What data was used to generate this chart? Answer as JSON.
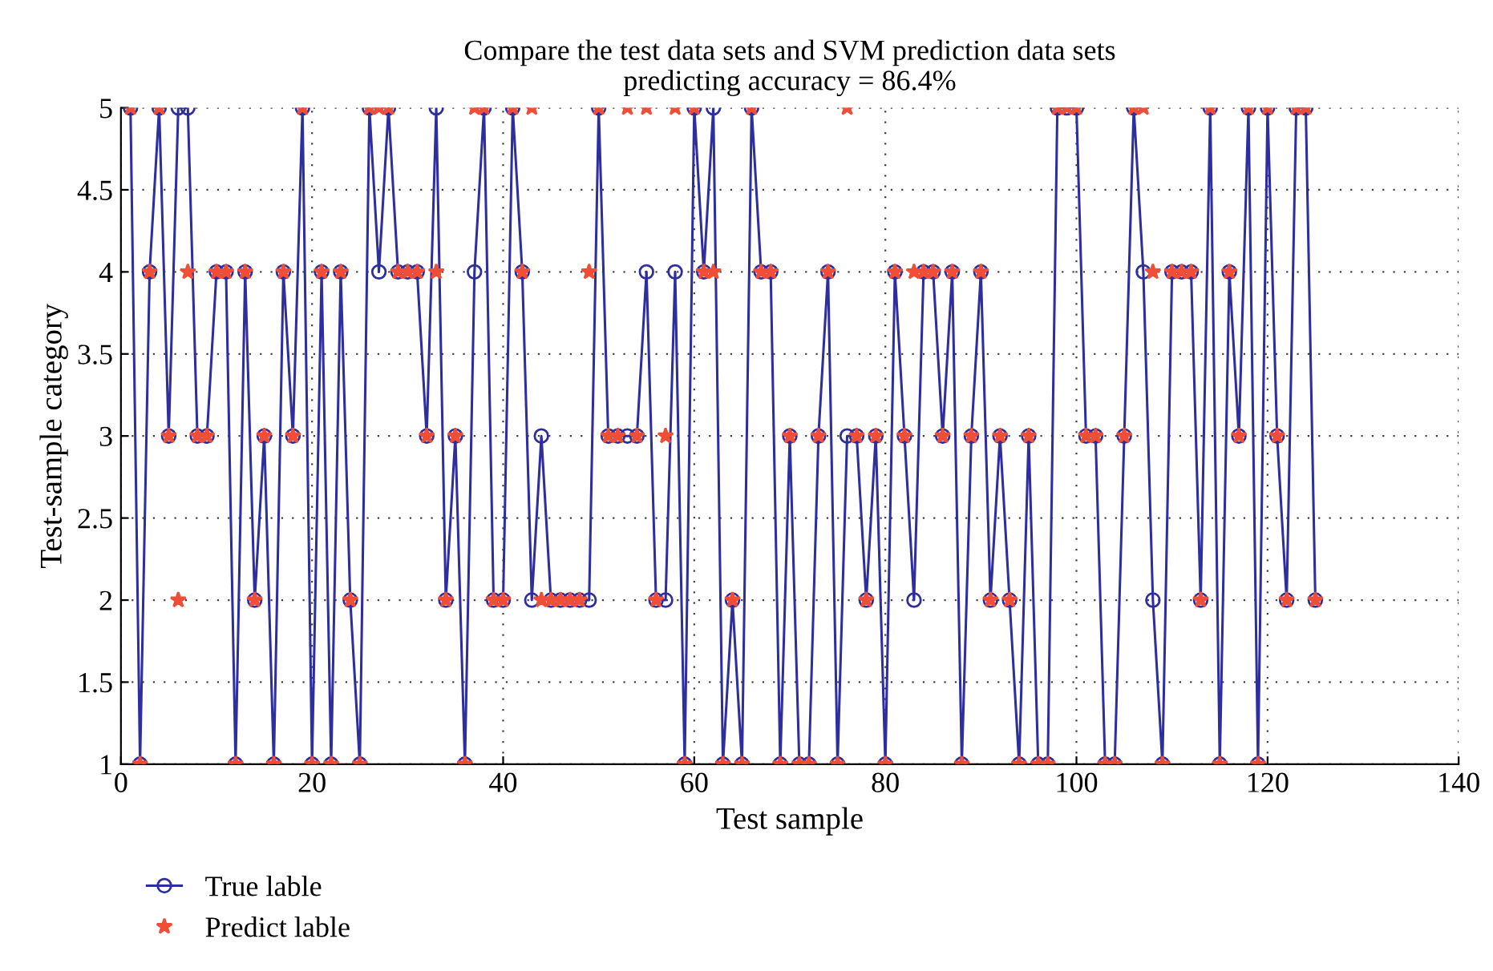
{
  "chart_data": {
    "type": "line",
    "title": "Compare the test data sets and SVM prediction data sets\npredicting accuracy = 86.4%",
    "xlabel": "Test sample",
    "ylabel": "Test-sample category",
    "x": [
      1,
      2,
      3,
      4,
      5,
      6,
      7,
      8,
      9,
      10,
      11,
      12,
      13,
      14,
      15,
      16,
      17,
      18,
      19,
      20,
      21,
      22,
      23,
      24,
      25,
      26,
      27,
      28,
      29,
      30,
      31,
      32,
      33,
      34,
      35,
      36,
      37,
      38,
      39,
      40,
      41,
      42,
      43,
      44,
      45,
      46,
      47,
      48,
      49,
      50,
      51,
      52,
      53,
      54,
      55,
      56,
      57,
      58,
      59,
      60,
      61,
      62,
      63,
      64,
      65,
      66,
      67,
      68,
      69,
      70,
      71,
      72,
      73,
      74,
      75,
      76,
      77,
      78,
      79,
      80,
      81,
      82,
      83,
      84,
      85,
      86,
      87,
      88,
      89,
      90,
      91,
      92,
      93,
      94,
      95,
      96,
      97,
      98,
      99,
      100,
      101,
      102,
      103,
      104,
      105,
      106,
      107,
      108,
      109,
      110,
      111,
      112,
      113,
      114,
      115,
      116,
      117,
      118,
      119,
      120,
      121,
      122,
      123,
      124,
      125
    ],
    "series": [
      {
        "name": "True lable",
        "color": "#2e2e9e",
        "marker": "circle",
        "line_style": "solid",
        "values": [
          5,
          1,
          4,
          5,
          3,
          5,
          5,
          3,
          3,
          4,
          4,
          1,
          4,
          2,
          3,
          1,
          4,
          3,
          5,
          1,
          4,
          1,
          4,
          2,
          1,
          5,
          4,
          5,
          4,
          4,
          4,
          3,
          5,
          2,
          3,
          1,
          4,
          5,
          2,
          2,
          5,
          4,
          2,
          3,
          2,
          2,
          2,
          2,
          2,
          5,
          3,
          3,
          3,
          3,
          4,
          2,
          2,
          4,
          1,
          5,
          4,
          5,
          1,
          2,
          1,
          5,
          4,
          4,
          1,
          3,
          1,
          1,
          3,
          4,
          1,
          3,
          3,
          2,
          3,
          1,
          4,
          3,
          2,
          4,
          4,
          3,
          4,
          1,
          3,
          4,
          2,
          3,
          2,
          1,
          3,
          1,
          1,
          5,
          5,
          5,
          3,
          3,
          1,
          1,
          3,
          5,
          4,
          2,
          1,
          4,
          4,
          4,
          2,
          5,
          1,
          4,
          3,
          5,
          1,
          5,
          3,
          2,
          5,
          5,
          2
        ]
      },
      {
        "name": "Predict lable",
        "type": "scatter",
        "color": "#f04e37",
        "marker": "star",
        "values": [
          5,
          1,
          4,
          5,
          3,
          2,
          4,
          3,
          3,
          4,
          4,
          1,
          4,
          2,
          3,
          1,
          4,
          3,
          5,
          1,
          4,
          1,
          4,
          2,
          1,
          5,
          5,
          5,
          4,
          4,
          4,
          3,
          4,
          2,
          3,
          1,
          5,
          5,
          2,
          2,
          5,
          4,
          5,
          2,
          2,
          2,
          2,
          2,
          4,
          5,
          3,
          3,
          5,
          3,
          5,
          2,
          3,
          5,
          1,
          5,
          4,
          4,
          1,
          2,
          1,
          5,
          4,
          4,
          1,
          3,
          1,
          1,
          3,
          4,
          1,
          5,
          3,
          2,
          3,
          1,
          4,
          3,
          4,
          4,
          4,
          3,
          4,
          1,
          3,
          4,
          2,
          3,
          2,
          1,
          3,
          1,
          1,
          5,
          5,
          5,
          3,
          3,
          1,
          1,
          3,
          5,
          5,
          4,
          1,
          4,
          4,
          4,
          2,
          5,
          1,
          4,
          3,
          5,
          1,
          5,
          3,
          2,
          5,
          5,
          2
        ]
      }
    ],
    "xlim": [
      0,
      140
    ],
    "xticks": [
      0,
      20,
      40,
      60,
      80,
      100,
      120,
      140
    ],
    "ylim": [
      1,
      5
    ],
    "yticks": [
      1,
      1.5,
      2,
      2.5,
      3,
      3.5,
      4,
      4.5,
      5
    ],
    "grid": true,
    "legend": "bottom left"
  }
}
